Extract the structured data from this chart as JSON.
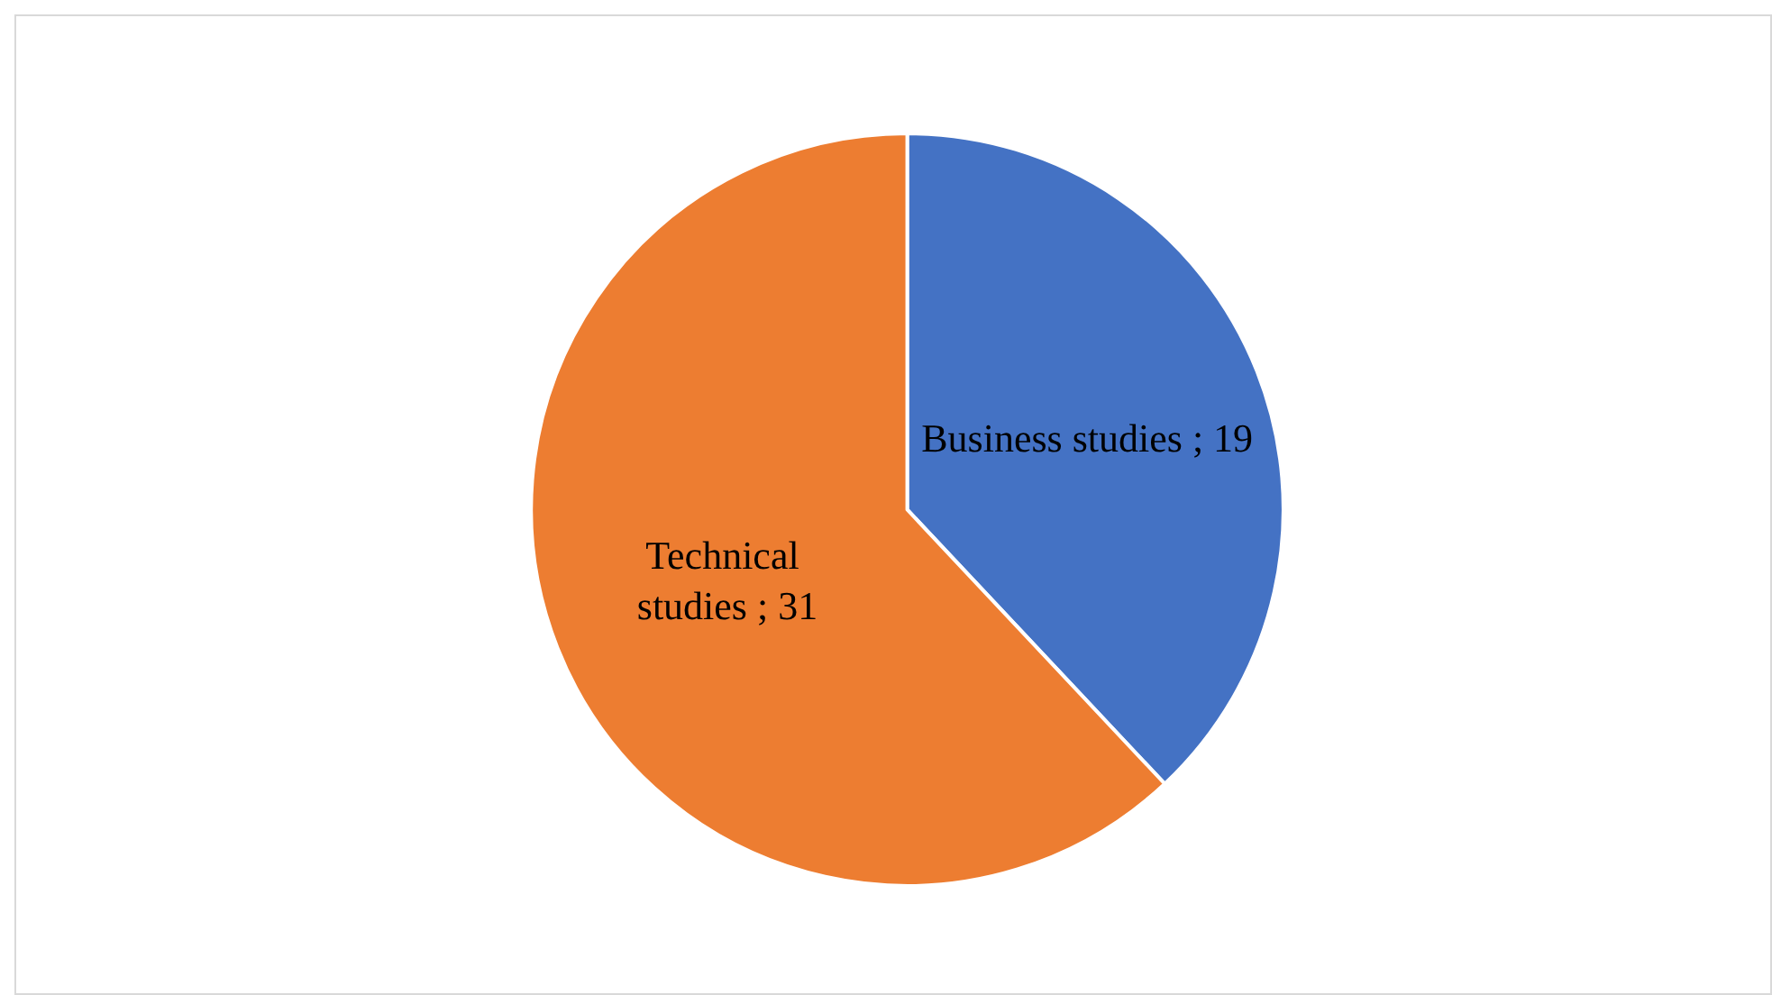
{
  "chart_data": {
    "type": "pie",
    "categories": [
      "Business studies",
      "Technical studies"
    ],
    "values": [
      19,
      31
    ],
    "colors": [
      "#4472c4",
      "#ed7d31"
    ],
    "value_labels": [
      "; 19",
      "; 31"
    ],
    "legend": false
  }
}
